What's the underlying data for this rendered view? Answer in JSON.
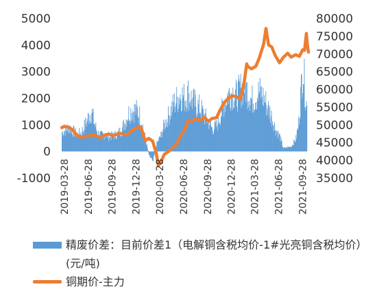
{
  "chart_data": {
    "type": "bar+line",
    "left_axis": {
      "min": -1000,
      "max": 5000,
      "ticks": [
        -1000,
        0,
        1000,
        2000,
        3000,
        4000,
        5000
      ]
    },
    "right_axis": {
      "min": 35000,
      "max": 80000,
      "ticks": [
        35000,
        40000,
        45000,
        50000,
        55000,
        60000,
        65000,
        70000,
        75000,
        80000
      ]
    },
    "x_tick_labels": [
      "2019-03-28",
      "2019-06-28",
      "2019-09-28",
      "2019-12-28",
      "2020-03-28",
      "2020-06-28",
      "2020-09-28",
      "2020-12-28",
      "2021-03-28",
      "2021-06-28",
      "2021-09-28"
    ],
    "x_tick_dates": [
      "2019-03-28",
      "2019-06-28",
      "2019-09-28",
      "2019-12-28",
      "2020-03-28",
      "2020-06-28",
      "2020-09-28",
      "2020-12-28",
      "2021-03-28",
      "2021-06-28",
      "2021-09-28"
    ],
    "x_range": [
      "2019-03-18",
      "2021-10-20"
    ],
    "series": [
      {
        "name": "精废价差：目前价差1（电解铜含税均价-1#光亮铜含税均价）(元/吨)",
        "type": "bar",
        "axis": "left",
        "color": "#5B9BD5",
        "points": [
          [
            "2019-03-18",
            900
          ],
          [
            "2019-04-01",
            1000
          ],
          [
            "2019-04-15",
            1150
          ],
          [
            "2019-05-01",
            950
          ],
          [
            "2019-05-15",
            800
          ],
          [
            "2019-06-01",
            900
          ],
          [
            "2019-06-15",
            1250
          ],
          [
            "2019-07-01",
            1700
          ],
          [
            "2019-07-10",
            1900
          ],
          [
            "2019-07-20",
            1350
          ],
          [
            "2019-08-01",
            900
          ],
          [
            "2019-08-15",
            750
          ],
          [
            "2019-09-01",
            800
          ],
          [
            "2019-09-15",
            700
          ],
          [
            "2019-10-01",
            750
          ],
          [
            "2019-10-15",
            800
          ],
          [
            "2019-11-01",
            1000
          ],
          [
            "2019-11-15",
            1400
          ],
          [
            "2019-12-01",
            1850
          ],
          [
            "2019-12-15",
            1950
          ],
          [
            "2020-01-01",
            1900
          ],
          [
            "2020-01-15",
            1600
          ],
          [
            "2020-02-01",
            600
          ],
          [
            "2020-02-15",
            -150
          ],
          [
            "2020-03-01",
            -400
          ],
          [
            "2020-03-15",
            350
          ],
          [
            "2020-04-01",
            750
          ],
          [
            "2020-04-15",
            1300
          ],
          [
            "2020-05-01",
            1700
          ],
          [
            "2020-05-15",
            2100
          ],
          [
            "2020-06-01",
            2450
          ],
          [
            "2020-06-15",
            2700
          ],
          [
            "2020-07-01",
            2500
          ],
          [
            "2020-07-15",
            2750
          ],
          [
            "2020-08-01",
            2350
          ],
          [
            "2020-08-15",
            2200
          ],
          [
            "2020-09-01",
            2000
          ],
          [
            "2020-09-15",
            1650
          ],
          [
            "2020-10-01",
            1400
          ],
          [
            "2020-10-15",
            1050
          ],
          [
            "2020-11-01",
            1200
          ],
          [
            "2020-11-15",
            1700
          ],
          [
            "2020-12-01",
            2300
          ],
          [
            "2020-12-15",
            2700
          ],
          [
            "2021-01-01",
            2800
          ],
          [
            "2021-01-15",
            2600
          ],
          [
            "2021-02-01",
            2900
          ],
          [
            "2021-02-15",
            3100
          ],
          [
            "2021-03-01",
            2800
          ],
          [
            "2021-03-15",
            2400
          ],
          [
            "2021-04-01",
            2600
          ],
          [
            "2021-04-15",
            2800
          ],
          [
            "2021-05-01",
            2500
          ],
          [
            "2021-05-15",
            2100
          ],
          [
            "2021-06-01",
            1600
          ],
          [
            "2021-06-15",
            1050
          ],
          [
            "2021-07-01",
            700
          ],
          [
            "2021-07-15",
            150
          ],
          [
            "2021-08-01",
            200
          ],
          [
            "2021-08-15",
            250
          ],
          [
            "2021-09-01",
            600
          ],
          [
            "2021-09-10",
            1200
          ],
          [
            "2021-09-20",
            2800
          ],
          [
            "2021-09-28",
            4100
          ],
          [
            "2021-10-05",
            3000
          ],
          [
            "2021-10-14",
            1900
          ]
        ]
      },
      {
        "name": "铜期价-主力",
        "type": "line",
        "axis": "right",
        "color": "#ED7D31",
        "points": [
          [
            "2019-03-18",
            49200
          ],
          [
            "2019-03-28",
            49600
          ],
          [
            "2019-04-15",
            49300
          ],
          [
            "2019-05-01",
            48500
          ],
          [
            "2019-05-15",
            47000
          ],
          [
            "2019-06-01",
            46500
          ],
          [
            "2019-06-15",
            46600
          ],
          [
            "2019-07-01",
            47000
          ],
          [
            "2019-07-15",
            47200
          ],
          [
            "2019-08-01",
            46800
          ],
          [
            "2019-08-15",
            46400
          ],
          [
            "2019-09-01",
            47200
          ],
          [
            "2019-09-15",
            47400
          ],
          [
            "2019-10-01",
            47000
          ],
          [
            "2019-10-15",
            47300
          ],
          [
            "2019-11-01",
            47600
          ],
          [
            "2019-11-15",
            47200
          ],
          [
            "2019-12-01",
            47500
          ],
          [
            "2019-12-15",
            48600
          ],
          [
            "2020-01-01",
            49200
          ],
          [
            "2020-01-15",
            49400
          ],
          [
            "2020-01-20",
            48500
          ],
          [
            "2020-02-01",
            45500
          ],
          [
            "2020-02-15",
            46200
          ],
          [
            "2020-03-01",
            45400
          ],
          [
            "2020-03-15",
            42000
          ],
          [
            "2020-03-23",
            38500
          ],
          [
            "2020-04-01",
            39500
          ],
          [
            "2020-04-15",
            41700
          ],
          [
            "2020-05-01",
            42500
          ],
          [
            "2020-05-15",
            43400
          ],
          [
            "2020-06-01",
            44500
          ],
          [
            "2020-06-15",
            46700
          ],
          [
            "2020-07-01",
            48500
          ],
          [
            "2020-07-15",
            51300
          ],
          [
            "2020-08-01",
            51000
          ],
          [
            "2020-08-15",
            51800
          ],
          [
            "2020-09-01",
            51200
          ],
          [
            "2020-09-15",
            52200
          ],
          [
            "2020-10-01",
            51000
          ],
          [
            "2020-10-15",
            51800
          ],
          [
            "2020-11-01",
            52000
          ],
          [
            "2020-11-15",
            54200
          ],
          [
            "2020-12-01",
            56300
          ],
          [
            "2020-12-15",
            57400
          ],
          [
            "2021-01-01",
            58200
          ],
          [
            "2021-01-15",
            58000
          ],
          [
            "2021-02-01",
            57200
          ],
          [
            "2021-02-15",
            61800
          ],
          [
            "2021-02-25",
            67200
          ],
          [
            "2021-03-01",
            66500
          ],
          [
            "2021-03-15",
            65800
          ],
          [
            "2021-04-01",
            66500
          ],
          [
            "2021-04-15",
            69000
          ],
          [
            "2021-05-01",
            72800
          ],
          [
            "2021-05-10",
            77200
          ],
          [
            "2021-05-20",
            72500
          ],
          [
            "2021-06-01",
            72000
          ],
          [
            "2021-06-15",
            69500
          ],
          [
            "2021-07-01",
            67500
          ],
          [
            "2021-07-15",
            69000
          ],
          [
            "2021-08-01",
            70200
          ],
          [
            "2021-08-15",
            69100
          ],
          [
            "2021-09-01",
            69800
          ],
          [
            "2021-09-15",
            69300
          ],
          [
            "2021-09-28",
            71200
          ],
          [
            "2021-10-05",
            71000
          ],
          [
            "2021-10-12",
            75800
          ],
          [
            "2021-10-16",
            72500
          ],
          [
            "2021-10-20",
            70500
          ]
        ]
      }
    ],
    "legend_placement": "bottom",
    "grid": false
  },
  "legend": {
    "bar_label": "精废价差：目前价差1（电解铜含税均价-1#光亮铜含税均价）(元/吨)",
    "line_label": "铜期价-主力"
  }
}
